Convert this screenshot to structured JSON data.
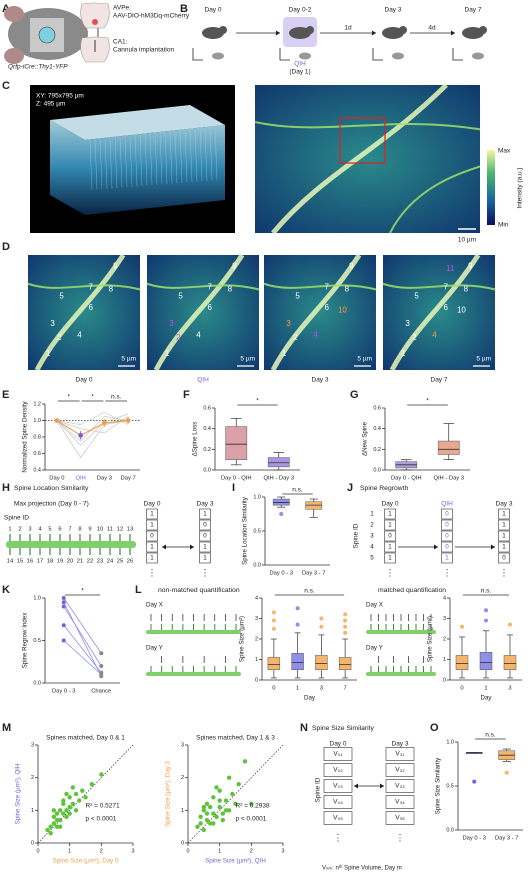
{
  "panels": {
    "A": {
      "label": "A",
      "avpe": "AVPe:",
      "avpe_virus": "AAV-DIO-hM3Dq-mCherry",
      "ca1": "CA1:",
      "ca1_text": "Cannula implantation",
      "mouse": "Qrfp-iCre::Thy1-YFP"
    },
    "B": {
      "label": "B",
      "days": [
        "Day 0",
        "Day 0-2",
        "Day 3",
        "Day 7"
      ],
      "intervals": [
        "1d",
        "4d"
      ],
      "qih": "QIH",
      "qih_day": "(Day 1)"
    },
    "C": {
      "label": "C",
      "xy": "XY: 795x795 µm",
      "z": "Z: 495 µm",
      "max": "Max",
      "min": "Min",
      "intensity": "Intensity (a.u.)",
      "scale": "10 µm"
    },
    "D": {
      "label": "D",
      "days": [
        "Day 0",
        "QIH",
        "Day 3",
        "Day 7"
      ],
      "day_colors": [
        "#222222",
        "#7b5fd6",
        "#222222",
        "#222222"
      ],
      "scale": "5 µm",
      "images": [
        {
          "spines": [
            "1",
            "2",
            "3",
            "4",
            "5",
            "6",
            "7",
            "8",
            "9"
          ],
          "colors": [
            "#ffffff",
            "#ffffff",
            "#ffffff",
            "#ffffff",
            "#ffffff",
            "#ffffff",
            "#ffffff",
            "#ffffff",
            "#ffffff"
          ]
        },
        {
          "spines": [
            "1",
            "2",
            "3",
            "4",
            "5",
            "6",
            "7",
            "8",
            "9"
          ],
          "colors": [
            "#ffffff",
            "#c050e0",
            "#c050e0",
            "#ffffff",
            "#ffffff",
            "#ffffff",
            "#ffffff",
            "#ffffff",
            "#ffffff"
          ]
        },
        {
          "spines": [
            "1",
            "2",
            "3",
            "4",
            "5",
            "6",
            "7",
            "8",
            "9",
            "10"
          ],
          "colors": [
            "#ffffff",
            "#ffffff",
            "#f0a040",
            "#c050e0",
            "#ffffff",
            "#ffffff",
            "#ffffff",
            "#ffffff",
            "#ffffff",
            "#f0a040"
          ]
        },
        {
          "spines": [
            "1",
            "2",
            "3",
            "4",
            "5",
            "6",
            "7",
            "8",
            "9",
            "10",
            "11"
          ],
          "colors": [
            "#ffffff",
            "#ffffff",
            "#ffffff",
            "#f0a040",
            "#ffffff",
            "#ffffff",
            "#ffffff",
            "#ffffff",
            "#ffffff",
            "#ffffff",
            "#c050e0"
          ]
        }
      ]
    },
    "E": {
      "label": "E"
    },
    "F": {
      "label": "F"
    },
    "G": {
      "label": "G"
    },
    "H": {
      "label": "H",
      "title": "Spine Location Similarity",
      "subtitle": "Max projection (Day 0 - 7)",
      "spine_id": "Spine ID",
      "top_ids": [
        "1",
        "2",
        "3",
        "4",
        "5",
        "6",
        "7",
        "8",
        "9",
        "10",
        "11",
        "12",
        "13"
      ],
      "bottom_ids": [
        "14",
        "15",
        "16",
        "17",
        "18",
        "19",
        "20",
        "21",
        "22",
        "23",
        "24",
        "25",
        "26"
      ],
      "columns": [
        {
          "header": "Day 0",
          "cells": [
            "1",
            "1",
            "0",
            "1",
            "1"
          ]
        },
        {
          "header": "Day 3",
          "cells": [
            "1",
            "0",
            "0",
            "1",
            "1"
          ]
        }
      ],
      "ellipsis": "⋮"
    },
    "I": {
      "label": "I"
    },
    "J": {
      "label": "J",
      "title": "Spine Regrowth",
      "spine_id": "Spine ID",
      "ids": [
        "1",
        "2",
        "3",
        "4",
        "5"
      ],
      "columns": [
        {
          "header": "Day 0",
          "color": "#222222",
          "cells": [
            "1",
            "1",
            "0",
            "1",
            "1"
          ]
        },
        {
          "header": "QIH",
          "color": "#7b5fd6",
          "cells": [
            "0",
            "0",
            "0",
            "0",
            "1"
          ]
        },
        {
          "header": "Day 3",
          "color": "#222222",
          "cells": [
            "1",
            "1",
            "1",
            "1",
            "0"
          ]
        }
      ],
      "ellipsis": "⋮"
    },
    "K": {
      "label": "K"
    },
    "L": {
      "label": "L",
      "groups": [
        {
          "title": "non-matched quantification",
          "day_x": "Day X",
          "day_y": "Day Y"
        },
        {
          "title": "matched quantification",
          "day_x": "Day X",
          "day_y": "Day Y"
        }
      ]
    },
    "M": {
      "label": "M"
    },
    "N": {
      "label": "N",
      "title": "Spine Size Similarity",
      "spine_id": "Spine ID",
      "columns": [
        {
          "header": "Day 0",
          "cells": [
            "V₀₁",
            "V₀₂",
            "V₀₃",
            "V₀₄",
            "V₀₅"
          ]
        },
        {
          "header": "Day 3",
          "cells": [
            "V₃₁",
            "V₃₂",
            "V₃₃",
            "V₃₄",
            "V₃₅"
          ]
        }
      ],
      "ellipsis": "⋮",
      "footnote": "Vₙₘ: nᵗʰ Spine Volume, Day m"
    },
    "O": {
      "label": "O"
    }
  },
  "chart_data": [
    {
      "type": "line",
      "ylabel": "Normalized Spine Density",
      "categories": [
        "Day 0",
        "QIH",
        "Day 3",
        "Day 7"
      ],
      "category_colors": [
        "#222222",
        "#7b5fd6",
        "#222222",
        "#222222"
      ],
      "ylim": [
        0.4,
        1.2
      ],
      "yticks": [
        0.4,
        0.6,
        0.8,
        {
          "value": 1.0,
          "label": "1.0"
        },
        1.2
      ],
      "reference_line": 1.0,
      "annotations": [
        "*",
        "*",
        "n.s."
      ],
      "series": [
        {
          "color": "#c8c8c8",
          "values": [
            1.0,
            0.55,
            0.95,
            1.0
          ]
        },
        {
          "color": "#c8c8c8",
          "values": [
            1.0,
            0.75,
            1.05,
            1.0
          ]
        },
        {
          "color": "#c8c8c8",
          "values": [
            1.0,
            0.9,
            0.85,
            1.05
          ]
        },
        {
          "color": "#c8c8c8",
          "values": [
            1.0,
            0.95,
            1.1,
            0.95
          ]
        },
        {
          "color": "#c8c8c8",
          "values": [
            1.0,
            0.7,
            0.98,
            1.08
          ]
        },
        {
          "color": "#f0a050",
          "point_colors": [
            "#f0a050",
            "#7b5fd6",
            "#f0a050",
            "#f0a050"
          ],
          "values": [
            1.0,
            0.82,
            0.97,
            1.0
          ],
          "errors": [
            0,
            0.05,
            0.05,
            0.04
          ]
        }
      ]
    },
    {
      "type": "box",
      "ylabel": "ΔSpine Loss",
      "categories": [
        "Day 0 - QIH",
        "QIH - Day 3"
      ],
      "ylim": [
        0,
        0.6
      ],
      "yticks": [
        {
          "value": 0,
          "label": "0.0"
        },
        0.2,
        0.4,
        0.6
      ],
      "annotations": [
        "*"
      ],
      "series": [
        {
          "colors": [
            "#dba0a8",
            "#a995e0"
          ],
          "min": [
            0.05,
            0
          ],
          "q1": [
            0.1,
            0.03
          ],
          "median": [
            0.25,
            0.07
          ],
          "q3": [
            0.42,
            0.12
          ],
          "max": [
            0.5,
            0.17
          ],
          "outliers": [
            [],
            []
          ]
        }
      ]
    },
    {
      "type": "box",
      "ylabel": "ΔNew Spine",
      "categories": [
        "Day 0 - QIH",
        "QIH - Day 3"
      ],
      "ylim": [
        0,
        0.6
      ],
      "yticks": [
        {
          "value": 0,
          "label": "0.0"
        },
        0.2,
        0.4,
        0.6
      ],
      "annotations": [
        "*"
      ],
      "series": [
        {
          "colors": [
            "#b09ae0",
            "#e8a890"
          ],
          "min": [
            0,
            0.1
          ],
          "q1": [
            0.02,
            0.15
          ],
          "median": [
            0.05,
            0.2
          ],
          "q3": [
            0.08,
            0.28
          ],
          "max": [
            0.1,
            0.45
          ],
          "outliers": [
            [],
            []
          ]
        }
      ]
    },
    {
      "type": "box",
      "ylabel": "Spine Location Similarity",
      "categories": [
        "Day 0 - 3",
        "Day 3 - 7"
      ],
      "ylim": [
        0,
        1.0
      ],
      "yticks": [
        {
          "value": 0,
          "label": "0.0"
        },
        0.5,
        {
          "value": 1.0,
          "label": "1.0"
        }
      ],
      "annotations": [
        "n.s."
      ],
      "series": [
        {
          "colors": [
            "#8f8fe8",
            "#f5b56c"
          ],
          "min": [
            0.85,
            0.7
          ],
          "q1": [
            0.88,
            0.82
          ],
          "median": [
            0.92,
            0.88
          ],
          "q3": [
            0.97,
            0.93
          ],
          "max": [
            1.0,
            0.97
          ],
          "outliers": [
            [
              0.75
            ],
            []
          ]
        }
      ]
    },
    {
      "type": "paired",
      "ylabel": "Spine Regrow Index",
      "categories": [
        "Day 0 - 3",
        "Chance"
      ],
      "ylim": [
        0,
        1.0
      ],
      "yticks": [
        {
          "value": 0,
          "label": "0.0"
        },
        0.5,
        {
          "value": 1.0,
          "label": "1.0"
        }
      ],
      "annotations": [
        "*"
      ],
      "point_colors": [
        "#7b5fd6",
        "#888888"
      ],
      "line_color": "#8f8fe8",
      "series": [
        {
          "values": [
            1.0,
            0.35
          ]
        },
        {
          "values": [
            0.9,
            0.2
          ]
        },
        {
          "values": [
            0.68,
            0.12
          ]
        },
        {
          "values": [
            0.5,
            0.1
          ]
        },
        {
          "values": [
            0.95,
            0.08
          ]
        }
      ]
    },
    {
      "type": "box",
      "ylabel": "Spine Size (µm²)",
      "xlabel": "Day",
      "categories": [
        "0",
        "1",
        "3",
        "7"
      ],
      "ylim": [
        0,
        4
      ],
      "yticks": [
        0,
        1,
        2,
        3,
        4
      ],
      "annotations": [
        "n.s."
      ],
      "series": [
        {
          "colors": [
            "#f5b56c",
            "#8f8fe8",
            "#f5b56c",
            "#f5b56c"
          ],
          "min": [
            0.1,
            0.1,
            0.1,
            0.1
          ],
          "q1": [
            0.5,
            0.5,
            0.5,
            0.5
          ],
          "median": [
            0.75,
            0.85,
            0.8,
            0.75
          ],
          "q3": [
            1.1,
            1.3,
            1.2,
            1.1
          ],
          "max": [
            2.0,
            2.3,
            2.2,
            2.0
          ],
          "outliers": [
            [
              2.5,
              2.9,
              3.3
            ],
            [
              2.7,
              3.5
            ],
            [
              2.6,
              3.0
            ],
            [
              2.3,
              2.6,
              2.9,
              3.2
            ]
          ]
        }
      ]
    },
    {
      "type": "box",
      "ylabel": "Spine Size (µm²)",
      "xlabel": "Day",
      "categories": [
        "0",
        "1",
        "3"
      ],
      "ylim": [
        0,
        4
      ],
      "yticks": [
        0,
        1,
        2,
        3,
        4
      ],
      "annotations": [
        "n.s."
      ],
      "series": [
        {
          "colors": [
            "#f5b56c",
            "#8f8fe8",
            "#f5b56c"
          ],
          "min": [
            0.1,
            0.1,
            0.1
          ],
          "q1": [
            0.5,
            0.5,
            0.5
          ],
          "median": [
            0.8,
            0.85,
            0.8
          ],
          "q3": [
            1.2,
            1.35,
            1.2
          ],
          "max": [
            2.1,
            2.4,
            2.2
          ],
          "outliers": [
            [
              2.6
            ],
            [
              2.9,
              3.4
            ],
            [
              2.7
            ]
          ]
        }
      ]
    },
    {
      "type": "scatter",
      "title": "Spines matched, Day 0 & 1",
      "xlabel": "Spine Size (µm²), Day 0",
      "ylabel": "Spine Size (µm²), QIH",
      "xlabel_color": "#f0a050",
      "ylabel_color": "#7b5fd6",
      "xlim": [
        0,
        3
      ],
      "ylim": [
        0,
        3
      ],
      "xticks": [
        0,
        1,
        2,
        3
      ],
      "yticks": [
        0,
        1,
        2,
        3
      ],
      "stats": [
        "R² = 0.5271",
        "p < 0.0001"
      ],
      "color": "#5cc43a",
      "x": [
        0.3,
        0.4,
        0.5,
        0.5,
        0.6,
        0.6,
        0.7,
        0.7,
        0.8,
        0.8,
        0.9,
        0.9,
        1.0,
        1.0,
        1.1,
        1.2,
        1.2,
        1.3,
        1.4,
        1.5,
        0.4,
        0.6,
        0.8,
        1.0,
        1.7,
        2.0,
        0.5,
        0.7,
        0.9,
        1.1
      ],
      "y": [
        0.4,
        0.3,
        0.6,
        0.8,
        0.5,
        0.9,
        0.7,
        1.0,
        0.9,
        1.2,
        1.0,
        0.8,
        1.1,
        1.4,
        1.2,
        1.0,
        1.5,
        1.3,
        1.6,
        1.4,
        0.5,
        0.7,
        1.3,
        0.9,
        1.8,
        2.1,
        1.0,
        0.5,
        1.5,
        1.7
      ]
    },
    {
      "type": "scatter",
      "title": "Spines matched, Day 1 & 3",
      "xlabel": "Spine Size (µm²), QIH",
      "ylabel": "Spine Size (µm²), Day 3",
      "xlabel_color": "#7b5fd6",
      "ylabel_color": "#f0a050",
      "xlim": [
        0,
        3
      ],
      "ylim": [
        0,
        3
      ],
      "xticks": [
        0,
        1,
        2,
        3
      ],
      "yticks": [
        0,
        1,
        2,
        3
      ],
      "stats": [
        "R² = 0.2938",
        "p < 0.0001"
      ],
      "color": "#5cc43a",
      "x": [
        0.3,
        0.4,
        0.5,
        0.5,
        0.6,
        0.6,
        0.7,
        0.8,
        0.8,
        0.9,
        1.0,
        1.0,
        1.1,
        1.2,
        1.3,
        1.4,
        1.5,
        1.6,
        0.4,
        0.7,
        0.9,
        1.1,
        1.3,
        2.0,
        0.6,
        0.8,
        1.0,
        1.2,
        0.5,
        1.8
      ],
      "y": [
        0.5,
        0.8,
        0.4,
        1.0,
        0.7,
        1.2,
        0.6,
        0.9,
        1.4,
        0.8,
        1.1,
        1.6,
        0.9,
        1.3,
        1.0,
        1.5,
        1.2,
        1.8,
        0.6,
        1.1,
        1.7,
        0.7,
        2.0,
        1.2,
        0.9,
        0.6,
        1.3,
        1.0,
        1.1,
        2.5
      ]
    },
    {
      "type": "box",
      "ylabel": "Spine Size Similarity",
      "categories": [
        "Day 0 - 3",
        "Day 3 - 7"
      ],
      "ylim": [
        0,
        1.0
      ],
      "yticks": [
        {
          "value": 0,
          "label": "0.0"
        },
        0.5,
        {
          "value": 1.0,
          "label": "1.0"
        }
      ],
      "annotations": [
        "n.s."
      ],
      "series": [
        {
          "colors": [
            "#7b5fd6",
            "#f5b56c"
          ],
          "min": [
            0.88,
            0.78
          ],
          "q1": [
            0.88,
            0.8
          ],
          "median": [
            0.88,
            0.85
          ],
          "q3": [
            0.88,
            0.9
          ],
          "max": [
            0.88,
            0.92
          ],
          "outliers": [
            [
              0.55
            ],
            [
              0.65
            ]
          ]
        }
      ]
    }
  ]
}
